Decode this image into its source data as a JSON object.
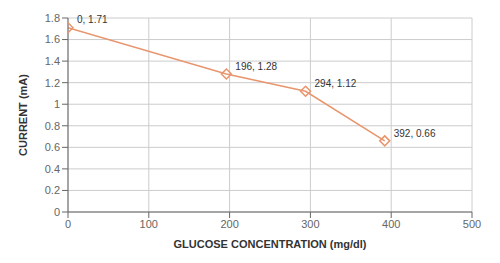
{
  "chart_data": {
    "type": "line",
    "x": [
      0,
      196,
      294,
      392
    ],
    "values": [
      1.71,
      1.28,
      1.12,
      0.66
    ],
    "color": "#E8956D",
    "marker": "diamond",
    "xlabel": "GLUCOSE CONCENTRATION (mg/dl)",
    "ylabel": "CURRENT (mA)",
    "xlim": [
      0,
      500
    ],
    "ylim": [
      0,
      1.8
    ],
    "xticks": [
      0,
      100,
      200,
      300,
      400,
      500
    ],
    "yticks": [
      0,
      0.2,
      0.4,
      0.6,
      0.8,
      1,
      1.2,
      1.4,
      1.6,
      1.8
    ],
    "grid": true,
    "annotations": [
      {
        "x": 0,
        "y": 1.71,
        "text": "0, 1.71"
      },
      {
        "x": 196,
        "y": 1.28,
        "text": "196, 1.28"
      },
      {
        "x": 294,
        "y": 1.12,
        "text": "294, 1.12"
      },
      {
        "x": 392,
        "y": 0.66,
        "text": "392, 0.66"
      }
    ]
  }
}
